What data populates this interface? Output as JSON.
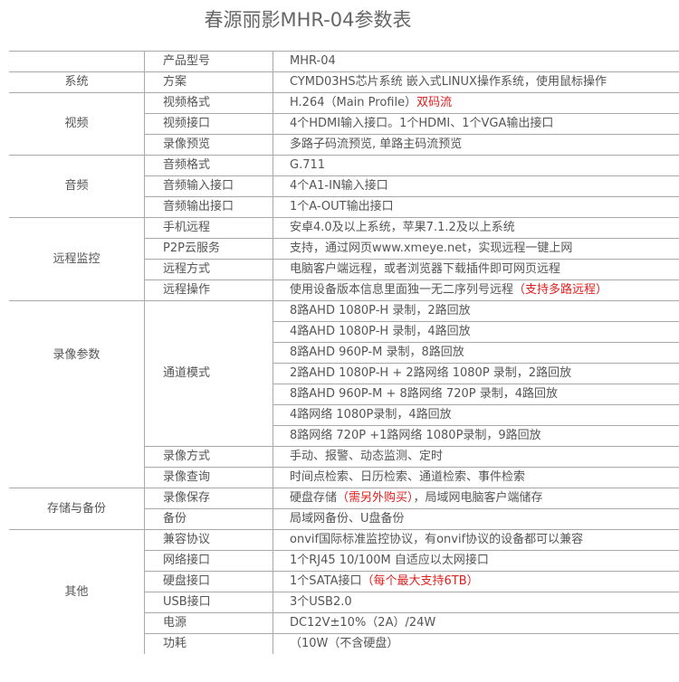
{
  "title": "春源丽影MHR-04参数表",
  "colors": {
    "text": "#555555",
    "highlight": "#e02020",
    "grid": "#a8a8a8"
  },
  "groups": [
    {
      "label": "",
      "rows": [
        {
          "key": "产品型号",
          "value": [
            {
              "text": "MHR-04"
            }
          ]
        }
      ]
    },
    {
      "label": "系统",
      "rows": [
        {
          "key": "方案",
          "value": [
            {
              "text": "CYMD03HS芯片系统 嵌入式LINUX操作系统，使用鼠标操作"
            }
          ]
        }
      ]
    },
    {
      "label": "视频",
      "rows": [
        {
          "key": "视频格式",
          "value": [
            {
              "text": "H.264（Main Profile）"
            },
            {
              "text": "双码流",
              "red": true
            }
          ]
        },
        {
          "key": "视频接口",
          "big": true,
          "value": [
            {
              "text": "4个HDMI输入接口。1个HDMI、1个VGA输出接口"
            }
          ]
        },
        {
          "key": "录像预览",
          "value": [
            {
              "text": "多路子码流预览, 单路主码流预览"
            }
          ]
        }
      ]
    },
    {
      "label": "音频",
      "rows": [
        {
          "key": "音频格式",
          "value": [
            {
              "text": "G.711"
            }
          ]
        },
        {
          "key": "音频输入接口",
          "value": [
            {
              "text": "4个A1-IN输入接口"
            }
          ]
        },
        {
          "key": "音频输出接口",
          "value": [
            {
              "text": "1个A-OUT输出接口"
            }
          ]
        }
      ]
    },
    {
      "label": "远程监控",
      "rows": [
        {
          "key": "手机远程",
          "value": [
            {
              "text": "安卓4.0及以上系统，苹果7.1.2及以上系统"
            }
          ]
        },
        {
          "key": "P2P云服务",
          "value": [
            {
              "text": "支持，通过网页www.xmeye.net，实现远程一键上网"
            }
          ]
        },
        {
          "key": "远程方式",
          "value": [
            {
              "text": "电脑客户端远程，或者浏览器下载插件即可网页远程"
            }
          ]
        },
        {
          "key": "远程操作",
          "value": [
            {
              "text": "使用设备版本信息里面独一无二序列号远程"
            },
            {
              "text": "（支持多路远程）",
              "red": true
            }
          ]
        }
      ]
    },
    {
      "label": "录像参数",
      "top": true,
      "rows": [
        {
          "key": "通道模式",
          "span": 7,
          "value": [
            {
              "text": "8路AHD 1080P-H 录制，2路回放"
            }
          ]
        },
        {
          "value": [
            {
              "text": "4路AHD 1080P-H 录制，4路回放"
            }
          ]
        },
        {
          "value": [
            {
              "text": "8路AHD 960P-M  录制，8路回放"
            }
          ]
        },
        {
          "value": [
            {
              "text": "2路AHD 1080P-H + 2路网络 1080P 录制，2路回放"
            }
          ]
        },
        {
          "value": [
            {
              "text": "8路AHD 960P-M + 8路网络 720P 录制，4路回放"
            }
          ]
        },
        {
          "value": [
            {
              "text": "4路网络 1080P录制，4路回放"
            }
          ]
        },
        {
          "value": [
            {
              "text": "8路网络 720P +1路网络 1080P录制，9路回放"
            }
          ]
        },
        {
          "key": "录像方式",
          "value": [
            {
              "text": "手动、报警、动态监测、定时"
            }
          ]
        },
        {
          "key": "录像查询",
          "value": [
            {
              "text": "时间点检索、日历检索、通道检索、事件检索"
            }
          ]
        }
      ]
    },
    {
      "label": "存储与备份",
      "rows": [
        {
          "key": "录像保存",
          "value": [
            {
              "text": "硬盘存储"
            },
            {
              "text": "（需另外购买）",
              "red": true
            },
            {
              "text": "，局域网电脑客户端储存"
            }
          ]
        },
        {
          "key": "备份",
          "value": [
            {
              "text": "局域网备份、U盘备份"
            }
          ]
        }
      ]
    },
    {
      "label": "其他",
      "rows": [
        {
          "key": "兼容协议",
          "value": [
            {
              "text": "onvif国际标准监控协议，有onvif协议的设备都可以兼容"
            }
          ]
        },
        {
          "key": "网络接口",
          "value": [
            {
              "text": "1个RJ45 10/100M 自适应以太网接口"
            }
          ]
        },
        {
          "key": "硬盘接口",
          "value": [
            {
              "text": "1个SATA接口"
            },
            {
              "text": "（每个最大支持6TB）",
              "red": true
            }
          ]
        },
        {
          "key": "USB接口",
          "value": [
            {
              "text": "3个USB2.0"
            }
          ]
        },
        {
          "key": "电源",
          "value": [
            {
              "text": "DC12V±10%（2A）/24W"
            }
          ]
        },
        {
          "key": "功耗",
          "value": [
            {
              "text": "（10W（不含硬盘）"
            }
          ]
        }
      ]
    }
  ]
}
